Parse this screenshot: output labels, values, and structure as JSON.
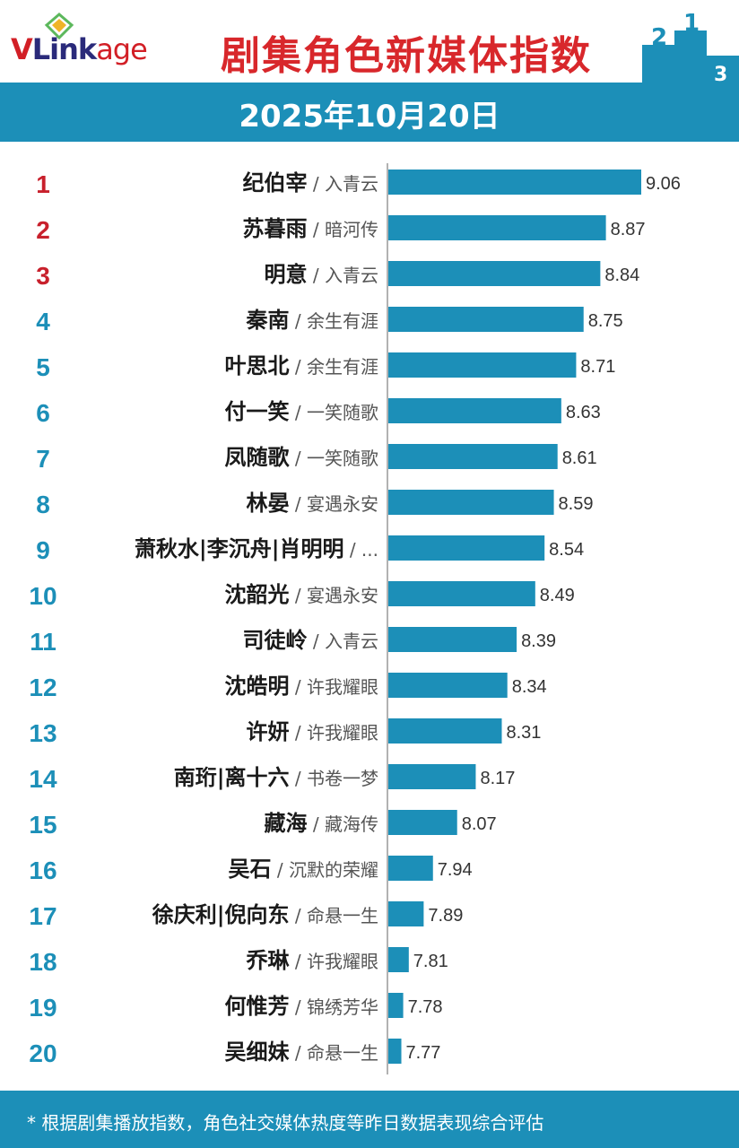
{
  "header": {
    "logo": {
      "v": "V",
      "link": "Link",
      "age": "age"
    },
    "title": "剧集角色新媒体指数",
    "podium_digits": [
      "2",
      "1",
      "3"
    ]
  },
  "date": "2025年10月20日",
  "colors": {
    "bar": "#1c8fb8",
    "rank_top": "#c8202c",
    "rank_other": "#1c8fb8",
    "band": "#1c8fb8",
    "title": "#d8272b"
  },
  "chart_data": {
    "type": "bar",
    "orientation": "horizontal",
    "title": "剧集角色新媒体指数",
    "subtitle": "2025年10月20日",
    "xlabel": "",
    "ylabel": "",
    "xlim": [
      7.7,
      9.06
    ],
    "grid": false,
    "legend": "none",
    "rows": [
      {
        "rank": "1",
        "name": "纪伯宰",
        "show": "/ 入青云",
        "value": 9.06
      },
      {
        "rank": "2",
        "name": "苏暮雨",
        "show": "/ 暗河传",
        "value": 8.87
      },
      {
        "rank": "3",
        "name": "明意",
        "show": "/ 入青云",
        "value": 8.84
      },
      {
        "rank": "4",
        "name": "秦南",
        "show": "/ 余生有涯",
        "value": 8.75
      },
      {
        "rank": "5",
        "name": "叶思北",
        "show": "/ 余生有涯",
        "value": 8.71
      },
      {
        "rank": "6",
        "name": "付一笑",
        "show": "/ 一笑随歌",
        "value": 8.63
      },
      {
        "rank": "7",
        "name": "凤随歌",
        "show": "/ 一笑随歌",
        "value": 8.61
      },
      {
        "rank": "8",
        "name": "林晏",
        "show": "/ 宴遇永安",
        "value": 8.59
      },
      {
        "rank": "9",
        "name": "萧秋水|李沉舟|肖明明",
        "show": "/ ...",
        "value": 8.54
      },
      {
        "rank": "10",
        "name": "沈韶光",
        "show": "/ 宴遇永安",
        "value": 8.49
      },
      {
        "rank": "11",
        "name": "司徒岭",
        "show": "/ 入青云",
        "value": 8.39
      },
      {
        "rank": "12",
        "name": "沈皓明",
        "show": "/ 许我耀眼",
        "value": 8.34
      },
      {
        "rank": "13",
        "name": "许妍",
        "show": "/ 许我耀眼",
        "value": 8.31
      },
      {
        "rank": "14",
        "name": "南珩|离十六",
        "show": "/ 书卷一梦",
        "value": 8.17
      },
      {
        "rank": "15",
        "name": "藏海",
        "show": "/ 藏海传",
        "value": 8.07
      },
      {
        "rank": "16",
        "name": "吴石",
        "show": "/ 沉默的荣耀",
        "value": 7.94
      },
      {
        "rank": "17",
        "name": "徐庆利|倪向东",
        "show": "/ 命悬一生",
        "value": 7.89
      },
      {
        "rank": "18",
        "name": "乔琳",
        "show": "/ 许我耀眼",
        "value": 7.81
      },
      {
        "rank": "19",
        "name": "何惟芳",
        "show": "/ 锦绣芳华",
        "value": 7.78
      },
      {
        "rank": "20",
        "name": "吴细妹",
        "show": "/ 命悬一生",
        "value": 7.77
      }
    ]
  },
  "footer": {
    "note": "* 根据剧集播放指数，角色社交媒体热度等昨日数据表现综合评估"
  }
}
